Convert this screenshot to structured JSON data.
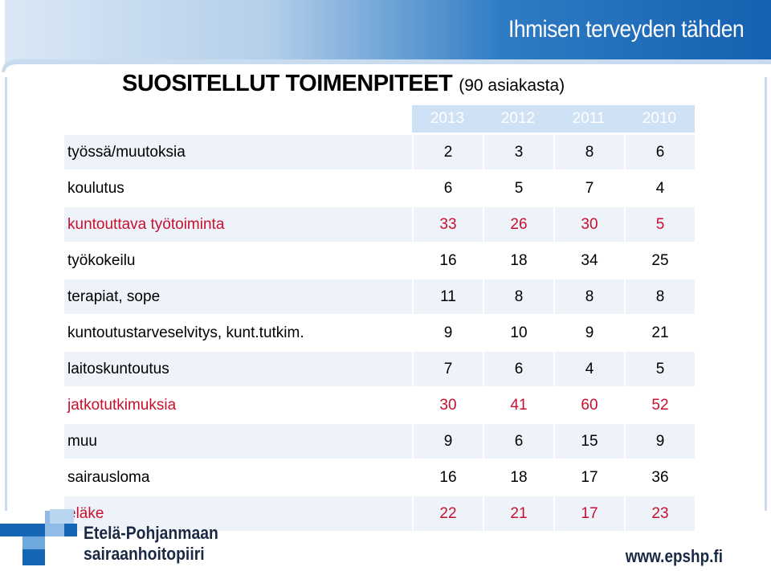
{
  "header": {
    "tagline": "Ihmisen terveyden tähden"
  },
  "title": {
    "main": "SUOSITELLUT TOIMENPITEET",
    "sub": "(90 asiakasta)"
  },
  "table": {
    "columns": [
      "2013",
      "2012",
      "2011",
      "2010"
    ],
    "rows": [
      {
        "label": "työssä/muutoksia",
        "values": [
          "2",
          "3",
          "8",
          "6"
        ],
        "highlight": false
      },
      {
        "label": "koulutus",
        "values": [
          "6",
          "5",
          "7",
          "4"
        ],
        "highlight": false
      },
      {
        "label": "kuntouttava työtoiminta",
        "values": [
          "33",
          "26",
          "30",
          "5"
        ],
        "highlight": true
      },
      {
        "label": "työkokeilu",
        "values": [
          "16",
          "18",
          "34",
          "25"
        ],
        "highlight": false
      },
      {
        "label": "terapiat, sope",
        "values": [
          "11",
          "8",
          "8",
          "8"
        ],
        "highlight": false
      },
      {
        "label": "kuntoutustarveselvitys, kunt.tutkim.",
        "values": [
          "9",
          "10",
          "9",
          "21"
        ],
        "highlight": false
      },
      {
        "label": "laitoskuntoutus",
        "values": [
          "7",
          "6",
          "4",
          "5"
        ],
        "highlight": false
      },
      {
        "label": "jatkotutkimuksia",
        "values": [
          "30",
          "41",
          "60",
          "52"
        ],
        "highlight": true
      },
      {
        "label": "muu",
        "values": [
          "9",
          "6",
          "15",
          "9"
        ],
        "highlight": false
      },
      {
        "label": "sairausloma",
        "values": [
          "16",
          "18",
          "17",
          "36"
        ],
        "highlight": false
      },
      {
        "label": "eläke",
        "values": [
          "22",
          "21",
          "17",
          "23"
        ],
        "highlight": true
      }
    ]
  },
  "footer": {
    "org_line1": "Etelä-Pohjanmaan",
    "org_line2": "sairaanhoitopiiri",
    "url": "www.epshp.fi"
  },
  "colors": {
    "brand_blue": "#1565b4",
    "highlight_red": "#c8102e",
    "header_light": "#cfe1f5"
  }
}
